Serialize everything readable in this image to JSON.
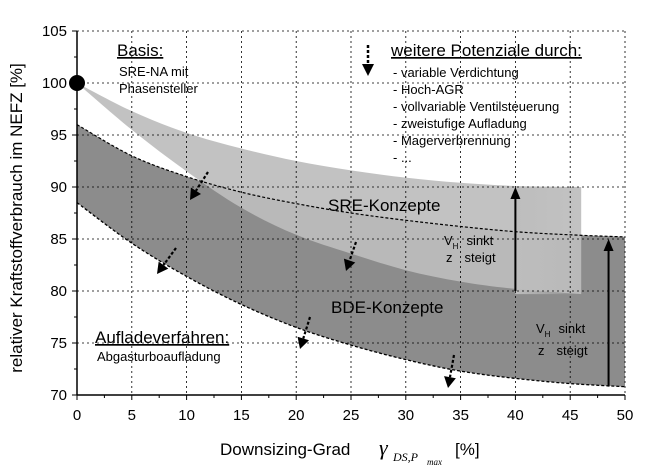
{
  "chart_data": {
    "type": "area",
    "xlabel_text": "Downsizing-Grad",
    "xlabel_symbol": "γ",
    "xlabel_sub": "DS,P",
    "xlabel_subsub": "max",
    "xlabel_unit": "[%]",
    "ylabel": "relativer Kraftstoffverbrauch im NEFZ [%]",
    "xlim": [
      0,
      50
    ],
    "ylim": [
      70,
      105
    ],
    "xticks": [
      0,
      5,
      10,
      15,
      20,
      25,
      30,
      35,
      40,
      45,
      50
    ],
    "yticks": [
      70,
      75,
      80,
      85,
      90,
      95,
      100,
      105
    ],
    "grid": true,
    "base_point": {
      "x": 0,
      "y": 100
    },
    "series": [
      {
        "name": "SRE-Konzepte",
        "upper": {
          "x": [
            0,
            5,
            10,
            15,
            20,
            25,
            30,
            35,
            40,
            46
          ],
          "y": [
            100,
            97.3,
            95.2,
            93.7,
            92.5,
            91.6,
            90.9,
            90.4,
            90.1,
            90
          ]
        },
        "lower": {
          "x": [
            0,
            5,
            10,
            15,
            20,
            25,
            30,
            35,
            40,
            46
          ],
          "y": [
            100,
            95.5,
            91.5,
            88.0,
            85.4,
            83.6,
            82.0,
            80.9,
            80.2,
            79.7
          ]
        }
      },
      {
        "name": "BDE-Konzepte",
        "upper": {
          "x": [
            0,
            5,
            10,
            15,
            20,
            25,
            30,
            35,
            40,
            45,
            50
          ],
          "y": [
            96,
            93.0,
            91.0,
            89.5,
            88.4,
            87.5,
            86.8,
            86.2,
            85.7,
            85.4,
            85.2
          ]
        },
        "lower": {
          "x": [
            0,
            5,
            10,
            15,
            20,
            25,
            30,
            35,
            40,
            45,
            50
          ],
          "y": [
            88.5,
            84.6,
            81.4,
            78.7,
            76.5,
            74.8,
            73.4,
            72.3,
            71.6,
            71.1,
            70.8
          ]
        }
      }
    ]
  },
  "labels": {
    "basis_title": "Basis:",
    "basis_line1": "SRE-NA mit",
    "basis_line2": "Phasensteller",
    "potenziale_title": "weitere Potenziale durch:",
    "potenziale_items": [
      "- variable Verdichtung",
      "- Hoch-AGR",
      "- vollvariable Ventilsteuerung",
      "- zweistufige Aufladung",
      "- Magerverbrennung",
      "- ..."
    ],
    "sre_label": "SRE-Konzepte",
    "bde_label": "BDE-Konzepte",
    "aufladung_title": "Aufladeverfahren:",
    "aufladung_text": "Abgasturboaufladung",
    "vh_sym": "V",
    "vh_sub": "H",
    "vh_text": "sinkt",
    "z_sym": "z",
    "z_text": "steigt"
  },
  "colors": {
    "sre_band": "#bdbdbd",
    "bde_band": "#8c8c8c",
    "overlap": "#a6a6a6",
    "grid": "#000000",
    "arrow": "#000000"
  }
}
